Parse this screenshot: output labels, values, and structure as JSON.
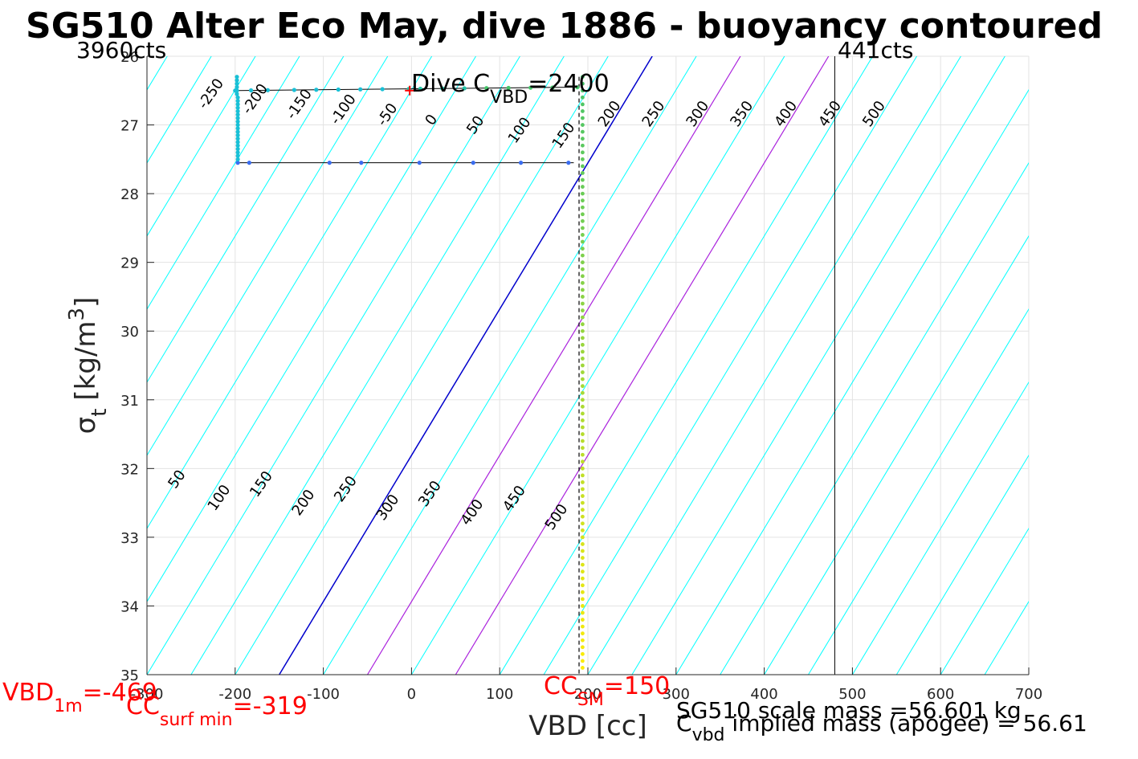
{
  "chart_data": {
    "type": "line",
    "title": "SG510 Alter Eco May, dive 1886 - buoyancy contoured",
    "xlabel": "VBD [cc]",
    "ylabel_main": "σ",
    "ylabel_sub": "t",
    "ylabel_unit": "[kg/m",
    "ylabel_sup": "3",
    "ylabel_close": "]",
    "xlim": [
      -300,
      700
    ],
    "ylim": [
      26,
      35
    ],
    "y_reversed": true,
    "grid": true,
    "x_ticks": [
      -300,
      -200,
      -100,
      0,
      100,
      200,
      300,
      400,
      500,
      600,
      700
    ],
    "y_ticks": [
      26,
      27,
      28,
      29,
      30,
      31,
      32,
      33,
      34,
      35
    ],
    "counts_left": "3960cts",
    "counts_right": "441cts",
    "counts_right_x": 480,
    "dive_c_vbd": {
      "prefix": "Dive C",
      "sub": "VBD",
      "value": "=2400",
      "x": -2,
      "y": 26.5
    },
    "upper_contours": [
      -250,
      -200,
      -150,
      -100,
      -50,
      0,
      50,
      100,
      150,
      200,
      250,
      300,
      350,
      400,
      450,
      500
    ],
    "lower_contours": [
      50,
      100,
      150,
      200,
      250,
      300,
      350,
      400,
      450,
      500
    ],
    "vbd_1m": {
      "main": "VBD",
      "sub": "1m",
      "value": "=-469"
    },
    "cc_surf_min": {
      "main": "CC",
      "sub": "surf min",
      "value": "=-319"
    },
    "cc_sm": {
      "main": "CC",
      "sub": "SM",
      "value": "=150"
    },
    "scale_mass": "SG510 scale mass =56.601 kg",
    "implied_mass": {
      "main": "C",
      "sub": "vbd",
      "value": " implied mass (apogee) = 56.61"
    },
    "profile_top_row": [
      -200,
      -182,
      -163,
      -133,
      -108,
      -83,
      -58,
      -33,
      -3,
      10,
      35,
      60,
      85,
      110,
      135,
      160,
      188
    ],
    "profile_top_y": 26.5,
    "profile_bottom_row": [
      -197,
      -184,
      -93,
      -57,
      9,
      70,
      124,
      178
    ],
    "profile_bottom_y": 27.55,
    "profile_left_x": -197,
    "profile_right_x": 194
  }
}
